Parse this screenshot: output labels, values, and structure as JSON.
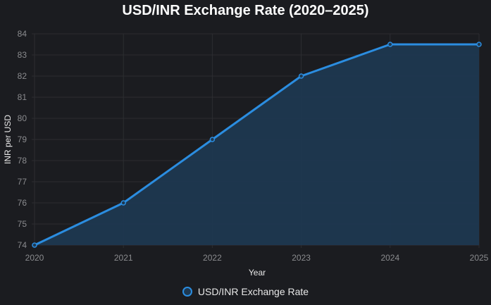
{
  "chart_data": {
    "type": "line",
    "title": "USD/INR Exchange Rate (2020–2025)",
    "xlabel": "Year",
    "ylabel": "INR per USD",
    "x": [
      "2020",
      "2021",
      "2022",
      "2023",
      "2024",
      "2025"
    ],
    "series": [
      {
        "name": "USD/INR Exchange Rate",
        "values": [
          74,
          76,
          79,
          82,
          83.5,
          83.5
        ],
        "color": "#2b8de0",
        "fill": true
      }
    ],
    "ylim": [
      74,
      84
    ],
    "yticks": [
      "74",
      "75",
      "76",
      "77",
      "78",
      "79",
      "80",
      "81",
      "82",
      "83",
      "84"
    ],
    "grid": true,
    "legend_position": "bottom"
  },
  "colors": {
    "background": "#1b1c20",
    "line": "#2b8de0",
    "fill": "#1e3850",
    "grid": "#2c2d31"
  }
}
